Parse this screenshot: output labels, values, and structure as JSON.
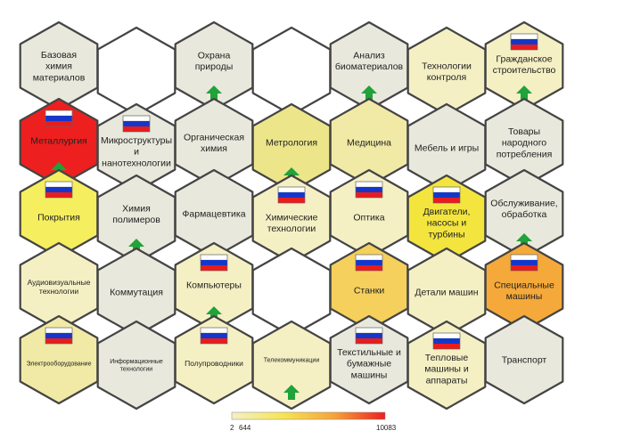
{
  "colors": {
    "empty": "#ffffff",
    "grey": "#e9e8dc",
    "pale": "#f5f0c4",
    "light": "#f0eaa6",
    "mid": "#ece58a",
    "yellow": "#f5ee5e",
    "bright": "#f3e53e",
    "ochre": "#f6d05c",
    "orange": "#f5a93a",
    "red": "#ee1f1f",
    "border": "#444444",
    "arrow": "#1fa33a",
    "flag_white": "#ffffff",
    "flag_blue": "#1537c9",
    "flag_red": "#e81c1c"
  },
  "cells": [
    {
      "id": "base-chem",
      "lines": [
        "Базовая",
        "химия",
        "материалов"
      ],
      "fill": "grey",
      "flag": false,
      "arrow": false,
      "size": "n"
    },
    {
      "id": "empty-1",
      "lines": [],
      "fill": "empty",
      "flag": false,
      "arrow": false,
      "size": "n"
    },
    {
      "id": "nature",
      "lines": [
        "Охрана",
        "природы"
      ],
      "fill": "grey",
      "flag": false,
      "arrow": true,
      "size": "n"
    },
    {
      "id": "empty-2",
      "lines": [],
      "fill": "empty",
      "flag": false,
      "arrow": false,
      "size": "n"
    },
    {
      "id": "biomaterials",
      "lines": [
        "Анализ",
        "биоматериалов"
      ],
      "fill": "grey",
      "flag": false,
      "arrow": true,
      "size": "n"
    },
    {
      "id": "control-tech",
      "lines": [
        "Технологии",
        "контроля"
      ],
      "fill": "pale",
      "flag": false,
      "arrow": false,
      "size": "n"
    },
    {
      "id": "civil",
      "lines": [
        "Гражданское",
        "строительство"
      ],
      "fill": "pale",
      "flag": true,
      "arrow": true,
      "size": "n"
    },
    {
      "id": "metallurgy",
      "lines": [
        "Металлургия"
      ],
      "fill": "red",
      "flag": true,
      "arrow": true,
      "size": "n"
    },
    {
      "id": "micro",
      "lines": [
        "Микроструктуры",
        "и",
        "нанотехнологии"
      ],
      "fill": "grey",
      "flag": true,
      "arrow": false,
      "size": "n"
    },
    {
      "id": "organic",
      "lines": [
        "Органическая",
        "химия"
      ],
      "fill": "grey",
      "flag": false,
      "arrow": false,
      "size": "n"
    },
    {
      "id": "metrology",
      "lines": [
        "Метрология"
      ],
      "fill": "mid",
      "flag": false,
      "arrow": true,
      "size": "n"
    },
    {
      "id": "medicine",
      "lines": [
        "Медицина"
      ],
      "fill": "light",
      "flag": false,
      "arrow": false,
      "size": "n"
    },
    {
      "id": "furniture",
      "lines": [
        "Мебель и игры"
      ],
      "fill": "grey",
      "flag": false,
      "arrow": false,
      "size": "n"
    },
    {
      "id": "consumer",
      "lines": [
        "Товары",
        "народного",
        "потребления"
      ],
      "fill": "grey",
      "flag": false,
      "arrow": false,
      "size": "n"
    },
    {
      "id": "coatings",
      "lines": [
        "Покрытия"
      ],
      "fill": "yellow",
      "flag": true,
      "arrow": false,
      "size": "n"
    },
    {
      "id": "polymers",
      "lines": [
        "Химия",
        "полимеров"
      ],
      "fill": "grey",
      "flag": false,
      "arrow": true,
      "size": "n"
    },
    {
      "id": "pharma",
      "lines": [
        "Фармацевтика"
      ],
      "fill": "grey",
      "flag": false,
      "arrow": false,
      "size": "n"
    },
    {
      "id": "chem-tech",
      "lines": [
        "Химические",
        "технологии"
      ],
      "fill": "pale",
      "flag": true,
      "arrow": false,
      "size": "n"
    },
    {
      "id": "optics",
      "lines": [
        "Оптика"
      ],
      "fill": "pale",
      "flag": true,
      "arrow": false,
      "size": "n"
    },
    {
      "id": "engines",
      "lines": [
        "Двигатели,",
        "насосы и",
        "турбины"
      ],
      "fill": "bright",
      "flag": true,
      "arrow": false,
      "size": "n"
    },
    {
      "id": "service",
      "lines": [
        "Обслуживание,",
        "обработка"
      ],
      "fill": "grey",
      "flag": false,
      "arrow": true,
      "size": "n"
    },
    {
      "id": "audiovisual",
      "lines": [
        "Аудиовизуальные",
        "технологии"
      ],
      "fill": "pale",
      "flag": false,
      "arrow": false,
      "size": "s"
    },
    {
      "id": "switching",
      "lines": [
        "Коммутация"
      ],
      "fill": "grey",
      "flag": false,
      "arrow": false,
      "size": "n"
    },
    {
      "id": "computers",
      "lines": [
        "Компьютеры"
      ],
      "fill": "pale",
      "flag": true,
      "arrow": true,
      "size": "n"
    },
    {
      "id": "empty-3",
      "lines": [],
      "fill": "empty",
      "flag": false,
      "arrow": false,
      "size": "n"
    },
    {
      "id": "machine-tools",
      "lines": [
        "Станки"
      ],
      "fill": "ochre",
      "flag": true,
      "arrow": false,
      "size": "n"
    },
    {
      "id": "machine-parts",
      "lines": [
        "Детали машин"
      ],
      "fill": "pale",
      "flag": false,
      "arrow": false,
      "size": "n"
    },
    {
      "id": "special",
      "lines": [
        "Специальные",
        "машины"
      ],
      "fill": "orange",
      "flag": true,
      "arrow": false,
      "size": "n"
    },
    {
      "id": "electrical",
      "lines": [
        "Электрооборудование"
      ],
      "fill": "light",
      "flag": true,
      "arrow": false,
      "size": "xs"
    },
    {
      "id": "it",
      "lines": [
        "Информационные",
        "технологии"
      ],
      "fill": "grey",
      "flag": false,
      "arrow": false,
      "size": "xs"
    },
    {
      "id": "semiconductors",
      "lines": [
        "Полупроводники"
      ],
      "fill": "pale",
      "flag": true,
      "arrow": false,
      "size": "s"
    },
    {
      "id": "telecom",
      "lines": [
        "Телекоммуникации"
      ],
      "fill": "pale",
      "flag": false,
      "arrow": true,
      "size": "xs"
    },
    {
      "id": "textile",
      "lines": [
        "Текстильные и",
        "бумажные",
        "машины"
      ],
      "fill": "grey",
      "flag": true,
      "arrow": false,
      "size": "n"
    },
    {
      "id": "thermal",
      "lines": [
        "Тепловые",
        "машины и",
        "аппараты"
      ],
      "fill": "pale",
      "flag": true,
      "arrow": false,
      "size": "n"
    },
    {
      "id": "transport",
      "lines": [
        "Транспорт"
      ],
      "fill": "grey",
      "flag": false,
      "arrow": false,
      "size": "n"
    }
  ],
  "scale": {
    "min_label": "2",
    "mid_label": "644",
    "max_label": "10083",
    "stops": [
      "#f3f0c8",
      "#f6e552",
      "#f5a43a",
      "#ee1f1f"
    ]
  }
}
